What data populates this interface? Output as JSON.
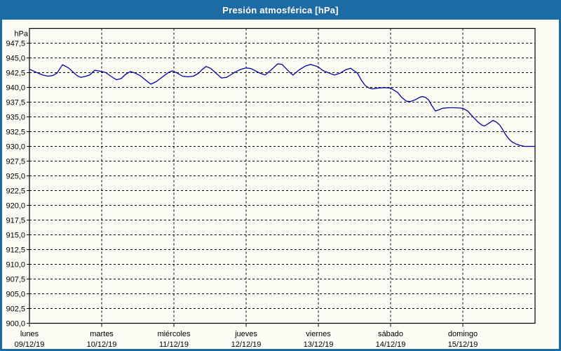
{
  "header": {
    "title": "Presión atmosférica [hPa]"
  },
  "colors": {
    "accent_blue": "#1d6ba5",
    "line_blue": "#0000a8",
    "grid_black": "#000000",
    "background": "#fcfcf4",
    "title_text": "#ffffff"
  },
  "y_axis": {
    "unit_label": "hPa",
    "tick_labels": [
      "947,5",
      "945,0",
      "942,5",
      "940,0",
      "937,5",
      "935,0",
      "932,5",
      "930,0",
      "927,5",
      "925,0",
      "922,5",
      "920,0",
      "917,5",
      "915,0",
      "912,5",
      "910,0",
      "907,5",
      "905,0",
      "902,5",
      "900,0"
    ]
  },
  "x_axis": {
    "days": [
      {
        "name": "lunes",
        "date": "09/12/19"
      },
      {
        "name": "martes",
        "date": "10/12/19"
      },
      {
        "name": "miércoles",
        "date": "11/12/19"
      },
      {
        "name": "jueves",
        "date": "12/12/19"
      },
      {
        "name": "viernes",
        "date": "13/12/19"
      },
      {
        "name": "sábado",
        "date": "14/12/19"
      },
      {
        "name": "domingo",
        "date": "15/12/19"
      }
    ]
  },
  "chart_data": {
    "type": "line",
    "title": "Presión atmosférica [hPa]",
    "ylabel": "hPa",
    "ylim": [
      900,
      950
    ],
    "ytick_step": 2.5,
    "grid": "dashed",
    "legend_position": "none",
    "x_unit": "hours since Monday 09/12/19 00:00",
    "xlim": [
      0,
      168
    ],
    "x_day_ticks_hours": [
      0,
      24,
      48,
      72,
      96,
      120,
      144
    ],
    "series": [
      {
        "name": "Presión atmosférica",
        "x_hours": [
          0,
          2.1,
          4.4,
          6.1,
          7.7,
          9.1,
          11.0,
          13.0,
          14.7,
          15.8,
          17.0,
          18.4,
          20.0,
          21.7,
          24.0,
          25.4,
          27.0,
          28.9,
          30.5,
          31.9,
          33.6,
          35.2,
          36.8,
          38.7,
          40.3,
          42.2,
          44.5,
          46.4,
          47.5,
          49.2,
          50.8,
          52.7,
          54.5,
          56.2,
          57.3,
          58.7,
          60.3,
          62.0,
          63.8,
          65.5,
          67.1,
          68.7,
          70.4,
          72.0,
          73.6,
          76.2,
          78.3,
          80.4,
          82.5,
          83.9,
          86.4,
          87.6,
          89.7,
          91.6,
          93.4,
          95.3,
          96.0,
          97.4,
          99.7,
          101.3,
          103.2,
          105.1,
          106.7,
          109.0,
          110.3,
          111.6,
          112.8,
          114.0,
          116.0,
          118.0,
          120.0,
          120.9,
          122.3,
          123.7,
          125.3,
          126.5,
          128.2,
          129.6,
          130.5,
          131.6,
          132.6,
          133.7,
          134.9,
          136.1,
          137.2,
          138.9,
          141.2,
          143.1,
          144.0,
          145.6,
          147.2,
          148.9,
          150.3,
          151.2,
          152.6,
          154.0,
          155.2,
          156.3,
          157.3,
          158.2,
          159.4,
          160.5,
          161.7,
          163.1,
          164.5,
          166.1,
          168.0
        ],
        "values": [
          943.1,
          942.6,
          942.1,
          941.9,
          942.0,
          942.4,
          943.85,
          943.3,
          942.5,
          942.0,
          941.7,
          941.85,
          942.1,
          942.9,
          942.7,
          942.5,
          941.9,
          941.3,
          941.5,
          942.2,
          942.7,
          942.4,
          942.0,
          941.2,
          940.55,
          941.0,
          941.9,
          942.6,
          942.8,
          942.4,
          941.9,
          941.8,
          941.9,
          942.4,
          943.0,
          943.55,
          943.2,
          942.4,
          941.6,
          941.7,
          942.2,
          942.7,
          943.1,
          943.3,
          943.2,
          942.5,
          942.1,
          943.0,
          944.0,
          943.9,
          942.6,
          942.1,
          943.0,
          943.6,
          943.9,
          943.6,
          943.45,
          942.9,
          942.4,
          942.1,
          942.4,
          943.0,
          943.25,
          942.4,
          941.2,
          940.3,
          939.9,
          939.75,
          939.9,
          939.95,
          939.9,
          939.6,
          939.15,
          938.3,
          937.65,
          937.6,
          937.9,
          938.3,
          938.45,
          938.3,
          937.9,
          936.9,
          936.0,
          936.2,
          936.45,
          936.55,
          936.55,
          936.5,
          936.45,
          936.0,
          935.1,
          934.2,
          933.6,
          933.45,
          933.9,
          934.4,
          934.1,
          933.6,
          932.8,
          932.0,
          931.2,
          930.7,
          930.4,
          930.15,
          930.0,
          930.0,
          930.0
        ]
      }
    ]
  }
}
